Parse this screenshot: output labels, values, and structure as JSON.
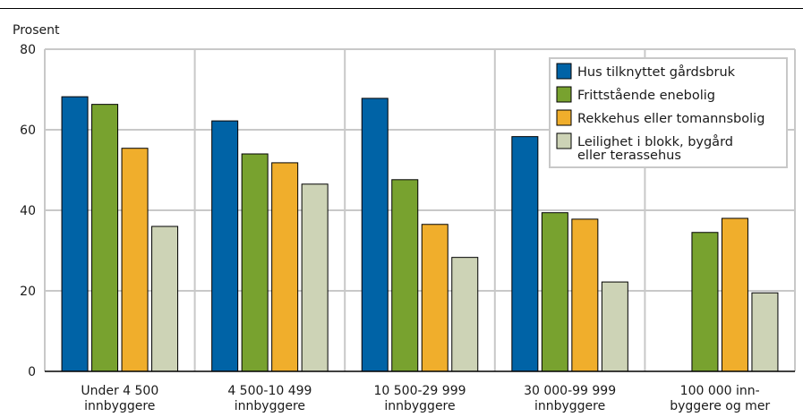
{
  "chart_data": {
    "type": "bar",
    "title": "",
    "ylabel": "Prosent",
    "xlabel": "",
    "ylim": [
      0,
      80
    ],
    "yticks": [
      0,
      20,
      40,
      60,
      80
    ],
    "grid": true,
    "legend_position": "top-right",
    "categories": [
      [
        "Under 4 500",
        "innbyggere"
      ],
      [
        "4 500-10 499",
        "innbyggere"
      ],
      [
        "10 500-29 999",
        "innbyggere"
      ],
      [
        "30 000-99 999",
        "innbyggere"
      ],
      [
        "100 000 inn-",
        "byggere og mer"
      ]
    ],
    "series": [
      {
        "name": [
          "Hus tilknyttet gårdsbruk"
        ],
        "color": "#0063a6",
        "values": [
          68.2,
          62.2,
          67.8,
          58.3,
          null
        ]
      },
      {
        "name": [
          "Frittstående enebolig"
        ],
        "color": "#78a22f",
        "values": [
          66.3,
          54.0,
          47.6,
          39.4,
          34.5
        ]
      },
      {
        "name": [
          "Rekkehus eller tomannsbolig"
        ],
        "color": "#f0ae2c",
        "values": [
          55.4,
          51.8,
          36.5,
          37.8,
          38.0
        ]
      },
      {
        "name": [
          "Leilighet i blokk, bygård",
          "eller terassehus"
        ],
        "color": "#cdd3b6",
        "values": [
          36.0,
          46.5,
          28.3,
          22.2,
          19.5
        ]
      }
    ]
  }
}
